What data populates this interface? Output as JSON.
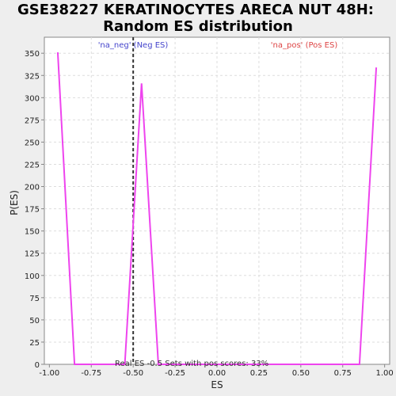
{
  "chart_data": {
    "type": "line",
    "title_lines": [
      "GSE38227 KERATINOCYTES ARECA NUT 48H:",
      "Random ES distribution"
    ],
    "xlabel": "ES",
    "ylabel": "P(ES)",
    "xlim": [
      -1.03,
      1.03
    ],
    "ylim": [
      0,
      368
    ],
    "xticks": [
      -1.0,
      -0.75,
      -0.5,
      -0.25,
      0.0,
      0.25,
      0.5,
      0.75,
      1.0
    ],
    "xtick_labels": [
      "-1.00",
      "-0.75",
      "-0.50",
      "-0.25",
      "0.00",
      "0.25",
      "0.50",
      "0.75",
      "1.00"
    ],
    "yticks": [
      0,
      25,
      50,
      75,
      100,
      125,
      150,
      175,
      200,
      225,
      250,
      275,
      300,
      325,
      350
    ],
    "grid": true,
    "series": [
      {
        "name": "P(ES)",
        "color": "#ee44ee",
        "x": [
          -0.95,
          -0.85,
          -0.55,
          -0.45,
          -0.35,
          0.85,
          0.95
        ],
        "y": [
          351,
          0,
          0,
          316,
          0,
          0,
          334
        ]
      }
    ],
    "real_es_line": {
      "x": -0.5,
      "color": "#333333"
    },
    "annotations": {
      "neg_label": "'na_neg' (Neg ES)",
      "neg_color": "#4444cc",
      "pos_label": "'na_pos' (Pos ES)",
      "pos_color": "#dd4444",
      "bottom_text": "Real ES -0.5 Sets with pos scores: 33%"
    }
  }
}
